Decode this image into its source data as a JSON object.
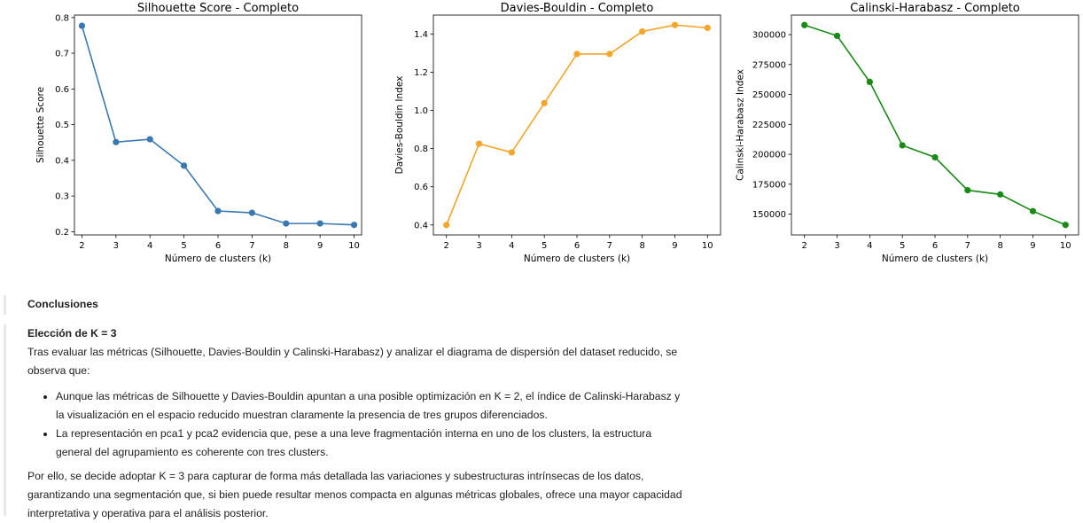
{
  "chart_data": [
    {
      "type": "line",
      "title": "Silhouette Score - Completo",
      "xlabel": "Número de clusters (k)",
      "ylabel": "Silhouette Score",
      "x": [
        2,
        3,
        4,
        5,
        6,
        7,
        8,
        9,
        10
      ],
      "series": [
        {
          "values": [
            0.777,
            0.451,
            0.459,
            0.385,
            0.258,
            0.253,
            0.223,
            0.223,
            0.219
          ],
          "color": "#3b78b2"
        }
      ],
      "xlim": [
        1.78,
        10.22
      ],
      "ylim": [
        0.191,
        0.807
      ],
      "yticks": [
        0.2,
        0.3,
        0.4,
        0.5,
        0.6,
        0.7,
        0.8
      ],
      "ytick_labels": [
        "0.2",
        "0.3",
        "0.4",
        "0.5",
        "0.6",
        "0.7",
        "0.8"
      ],
      "grid": false,
      "marker": "circle"
    },
    {
      "type": "line",
      "title": "Davies-Bouldin - Completo",
      "xlabel": "Número de clusters (k)",
      "ylabel": "Davies-Bouldin Index",
      "x": [
        2,
        3,
        4,
        5,
        6,
        7,
        8,
        9,
        10
      ],
      "series": [
        {
          "values": [
            0.4,
            0.825,
            0.78,
            1.038,
            1.295,
            1.295,
            1.413,
            1.447,
            1.432
          ],
          "color": "#f4a52a"
        }
      ],
      "xlim": [
        1.6,
        10.4
      ],
      "ylim": [
        0.348,
        1.499
      ],
      "yticks": [
        0.4,
        0.6,
        0.8,
        1.0,
        1.2,
        1.4
      ],
      "ytick_labels": [
        "0.4",
        "0.6",
        "0.8",
        "1.0",
        "1.2",
        "1.4"
      ],
      "grid": false,
      "marker": "circle"
    },
    {
      "type": "line",
      "title": "Calinski-Harabasz - Completo",
      "xlabel": "Número de clusters (k)",
      "ylabel": "Calinski-Harabasz Index",
      "x": [
        2,
        3,
        4,
        5,
        6,
        7,
        8,
        9,
        10
      ],
      "series": [
        {
          "values": [
            308000,
            299000,
            260500,
            207500,
            197500,
            170000,
            166500,
            152500,
            141000
          ],
          "color": "#198a17"
        }
      ],
      "xlim": [
        1.6,
        10.4
      ],
      "ylim": [
        132650,
        316350
      ],
      "yticks": [
        150000,
        175000,
        200000,
        225000,
        250000,
        275000,
        300000
      ],
      "ytick_labels": [
        "150000",
        "175000",
        "200000",
        "225000",
        "250000",
        "275000",
        "300000"
      ],
      "grid": false,
      "marker": "circle"
    }
  ],
  "markdown": {
    "conclusiones_title": "Conclusiones",
    "eleccion_title": "Elección de K = 3",
    "intro": "Tras evaluar las métricas (Silhouette, Davies-Bouldin y Calinski-Harabasz) y analizar el diagrama de dispersión del dataset reducido, se observa que:",
    "bullets": [
      "Aunque las métricas de Silhouette y Davies-Bouldin apuntan a una posible optimización en K = 2, el índice de Calinski-Harabasz y la visualización en el espacio reducido muestran claramente la presencia de tres grupos diferenciados.",
      "La representación en pca1 y pca2 evidencia que, pese a una leve fragmentación interna en uno de los clusters, la estructura general del agrupamiento es coherente con tres clusters."
    ],
    "closing": "Por ello, se decide adoptar K = 3 para capturar de forma más detallada las variaciones y subestructuras intrínsecas de los datos, garantizando una segmentación que, si bien puede resultar menos compacta en algunas métricas globales, ofrece una mayor capacidad interpretativa y operativa para el análisis posterior."
  }
}
